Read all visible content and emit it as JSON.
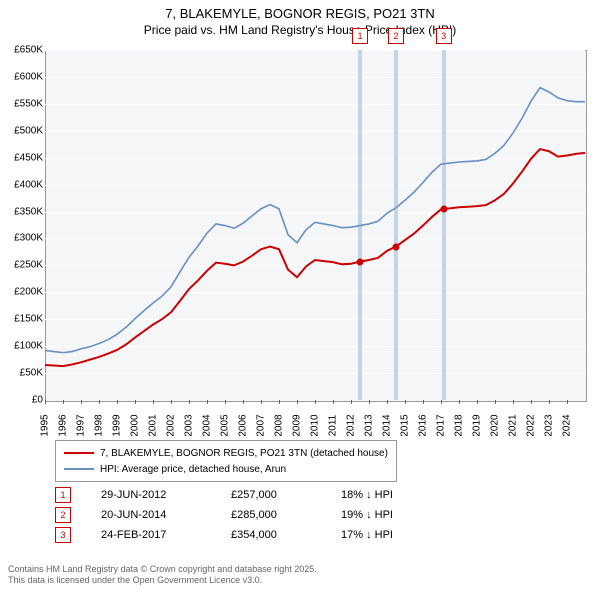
{
  "title_line1": "7, BLAKEMYLE, BOGNOR REGIS, PO21 3TN",
  "title_line2": "Price paid vs. HM Land Registry's House Price Index (HPI)",
  "chart": {
    "type": "line",
    "background_color": "#f5f6f8",
    "grid_color": "#ffffff",
    "border_color": "#999999",
    "ylim": [
      0,
      650000
    ],
    "ytick_step": 50000,
    "y_ticks": [
      "£0",
      "£50K",
      "£100K",
      "£150K",
      "£200K",
      "£250K",
      "£300K",
      "£350K",
      "£400K",
      "£450K",
      "£500K",
      "£550K",
      "£600K",
      "£650K"
    ],
    "xlim": [
      1995,
      2025
    ],
    "x_ticks": [
      1995,
      1996,
      1997,
      1998,
      1999,
      2000,
      2001,
      2002,
      2003,
      2004,
      2005,
      2006,
      2007,
      2008,
      2009,
      2010,
      2011,
      2012,
      2013,
      2014,
      2015,
      2016,
      2017,
      2018,
      2019,
      2020,
      2021,
      2022,
      2023,
      2024
    ],
    "series": [
      {
        "name": "7, BLAKEMYLE, BOGNOR REGIS, PO21 3TN (detached house)",
        "color": "#cc0000",
        "width": 2,
        "data": [
          [
            1995,
            65000
          ],
          [
            1995.5,
            64000
          ],
          [
            1996,
            63000
          ],
          [
            1996.5,
            66000
          ],
          [
            1997,
            70000
          ],
          [
            1997.5,
            75000
          ],
          [
            1998,
            80000
          ],
          [
            1998.5,
            86000
          ],
          [
            1999,
            93000
          ],
          [
            1999.5,
            103000
          ],
          [
            2000,
            116000
          ],
          [
            2000.5,
            128000
          ],
          [
            2001,
            140000
          ],
          [
            2001.5,
            150000
          ],
          [
            2002,
            163000
          ],
          [
            2002.5,
            184000
          ],
          [
            2003,
            206000
          ],
          [
            2003.5,
            222000
          ],
          [
            2004,
            240000
          ],
          [
            2004.5,
            255000
          ],
          [
            2005,
            253000
          ],
          [
            2005.5,
            250000
          ],
          [
            2006,
            257000
          ],
          [
            2006.5,
            268000
          ],
          [
            2007,
            280000
          ],
          [
            2007.5,
            285000
          ],
          [
            2008,
            280000
          ],
          [
            2008.5,
            242000
          ],
          [
            2009,
            228000
          ],
          [
            2009.5,
            248000
          ],
          [
            2010,
            260000
          ],
          [
            2010.5,
            258000
          ],
          [
            2011,
            256000
          ],
          [
            2011.5,
            252000
          ],
          [
            2012,
            253000
          ],
          [
            2012.5,
            257000
          ],
          [
            2013,
            260000
          ],
          [
            2013.5,
            264000
          ],
          [
            2014,
            277000
          ],
          [
            2014.5,
            285000
          ],
          [
            2015,
            297000
          ],
          [
            2015.5,
            309000
          ],
          [
            2016,
            324000
          ],
          [
            2016.5,
            340000
          ],
          [
            2017,
            354000
          ],
          [
            2017.5,
            356000
          ],
          [
            2018,
            358000
          ],
          [
            2018.5,
            359000
          ],
          [
            2019,
            360000
          ],
          [
            2019.5,
            362000
          ],
          [
            2020,
            371000
          ],
          [
            2020.5,
            383000
          ],
          [
            2021,
            402000
          ],
          [
            2021.5,
            424000
          ],
          [
            2022,
            448000
          ],
          [
            2022.5,
            466000
          ],
          [
            2023,
            462000
          ],
          [
            2023.5,
            452000
          ],
          [
            2024,
            454000
          ],
          [
            2024.5,
            457000
          ],
          [
            2025,
            459000
          ]
        ]
      },
      {
        "name": "HPI: Average price, detached house, Arun",
        "color": "#6a8fc5",
        "width": 1.6,
        "data": [
          [
            1995,
            92000
          ],
          [
            1995.5,
            90000
          ],
          [
            1996,
            88000
          ],
          [
            1996.5,
            90000
          ],
          [
            1997,
            95000
          ],
          [
            1997.5,
            99000
          ],
          [
            1998,
            105000
          ],
          [
            1998.5,
            112000
          ],
          [
            1999,
            122000
          ],
          [
            1999.5,
            135000
          ],
          [
            2000,
            151000
          ],
          [
            2000.5,
            166000
          ],
          [
            2001,
            180000
          ],
          [
            2001.5,
            193000
          ],
          [
            2002,
            210000
          ],
          [
            2002.5,
            238000
          ],
          [
            2003,
            265000
          ],
          [
            2003.5,
            286000
          ],
          [
            2004,
            310000
          ],
          [
            2004.5,
            327000
          ],
          [
            2005,
            324000
          ],
          [
            2005.5,
            319000
          ],
          [
            2006,
            328000
          ],
          [
            2006.5,
            342000
          ],
          [
            2007,
            355000
          ],
          [
            2007.5,
            363000
          ],
          [
            2008,
            355000
          ],
          [
            2008.5,
            307000
          ],
          [
            2009,
            292000
          ],
          [
            2009.5,
            316000
          ],
          [
            2010,
            330000
          ],
          [
            2010.5,
            327000
          ],
          [
            2011,
            324000
          ],
          [
            2011.5,
            320000
          ],
          [
            2012,
            321000
          ],
          [
            2012.5,
            324000
          ],
          [
            2013,
            327000
          ],
          [
            2013.5,
            332000
          ],
          [
            2014,
            347000
          ],
          [
            2014.5,
            357000
          ],
          [
            2015,
            371000
          ],
          [
            2015.5,
            386000
          ],
          [
            2016,
            404000
          ],
          [
            2016.5,
            423000
          ],
          [
            2017,
            438000
          ],
          [
            2017.5,
            440000
          ],
          [
            2018,
            442000
          ],
          [
            2018.5,
            443000
          ],
          [
            2019,
            444000
          ],
          [
            2019.5,
            447000
          ],
          [
            2020,
            458000
          ],
          [
            2020.5,
            473000
          ],
          [
            2021,
            496000
          ],
          [
            2021.5,
            523000
          ],
          [
            2022,
            555000
          ],
          [
            2022.5,
            580000
          ],
          [
            2023,
            572000
          ],
          [
            2023.5,
            561000
          ],
          [
            2024,
            556000
          ],
          [
            2024.5,
            554000
          ],
          [
            2025,
            554000
          ]
        ]
      }
    ],
    "sale_markers": [
      {
        "num": "1",
        "x": 2012.5,
        "y": 257000
      },
      {
        "num": "2",
        "x": 2014.5,
        "y": 285000
      },
      {
        "num": "3",
        "x": 2017.15,
        "y": 354000
      }
    ],
    "label_fontsize": 10
  },
  "legend": {
    "items": [
      {
        "color": "#cc0000",
        "label": "7, BLAKEMYLE, BOGNOR REGIS, PO21 3TN (detached house)"
      },
      {
        "color": "#6a8fc5",
        "label": "HPI: Average price, detached house, Arun"
      }
    ]
  },
  "sales_table": [
    {
      "num": "1",
      "date": "29-JUN-2012",
      "price": "£257,000",
      "hpi": "18% ↓ HPI"
    },
    {
      "num": "2",
      "date": "20-JUN-2014",
      "price": "£285,000",
      "hpi": "19% ↓ HPI"
    },
    {
      "num": "3",
      "date": "24-FEB-2017",
      "price": "£354,000",
      "hpi": "17% ↓ HPI"
    }
  ],
  "footer_line1": "Contains HM Land Registry data © Crown copyright and database right 2025.",
  "footer_line2": "This data is licensed under the Open Government Licence v3.0."
}
